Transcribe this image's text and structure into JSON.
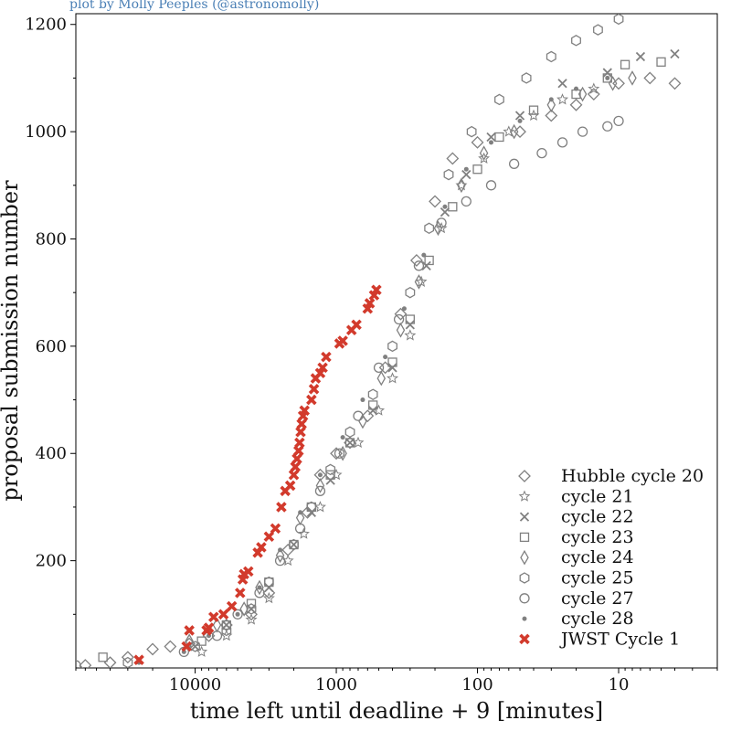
{
  "chart_data": {
    "type": "scatter",
    "credit": "plot by Molly Peeples (@astronomolly)",
    "xlabel": "time left until deadline + 9 [minutes]",
    "ylabel": "proposal submission number",
    "x_scale": "log",
    "x_inverted": true,
    "xlim": [
      70000,
      2
    ],
    "ylim": [
      0,
      1220
    ],
    "xticks": [
      10000,
      1000,
      100,
      10
    ],
    "xtick_labels": [
      "10000",
      "1000",
      "100",
      "10"
    ],
    "yticks": [
      200,
      400,
      600,
      800,
      1000,
      1200
    ],
    "ytick_labels": [
      "200",
      "400",
      "600",
      "800",
      "1000",
      "1200"
    ],
    "legend_position": "lower-right",
    "series": [
      {
        "name": "Hubble cycle 20",
        "marker": "diamond",
        "color": "#808080",
        "x": [
          60000,
          40000,
          30000,
          20000,
          15000,
          11000,
          8000,
          6000,
          4000,
          3000,
          2200,
          1600,
          1300,
          1000,
          800,
          600,
          450,
          350,
          270,
          200,
          150,
          100,
          50,
          30,
          20,
          15,
          10,
          6,
          4
        ],
        "y": [
          5,
          10,
          20,
          35,
          40,
          45,
          60,
          80,
          100,
          140,
          220,
          290,
          360,
          400,
          420,
          470,
          560,
          660,
          760,
          870,
          950,
          980,
          1000,
          1030,
          1050,
          1070,
          1090,
          1100,
          1090
        ]
      },
      {
        "name": "cycle 21",
        "marker": "star",
        "color": "#808080",
        "x": [
          9000,
          6000,
          4000,
          3000,
          2200,
          1700,
          1300,
          1000,
          700,
          500,
          400,
          300,
          250,
          180,
          130,
          90,
          60,
          40,
          25,
          15
        ],
        "y": [
          30,
          60,
          90,
          130,
          200,
          250,
          300,
          360,
          420,
          480,
          540,
          620,
          720,
          820,
          900,
          950,
          1000,
          1030,
          1060,
          1080
        ]
      },
      {
        "name": "cycle 22",
        "marker": "x",
        "color": "#808080",
        "x": [
          10000,
          6000,
          4000,
          3000,
          2000,
          1500,
          1100,
          800,
          550,
          400,
          300,
          230,
          170,
          120,
          80,
          50,
          25,
          12,
          7,
          4
        ],
        "y": [
          40,
          80,
          110,
          150,
          230,
          290,
          350,
          420,
          480,
          560,
          640,
          750,
          850,
          920,
          990,
          1030,
          1090,
          1110,
          1140,
          1145
        ]
      },
      {
        "name": "cycle 23",
        "marker": "square",
        "color": "#808080",
        "x": [
          45000,
          9000,
          6000,
          4000,
          3000,
          2000,
          1500,
          1100,
          800,
          550,
          400,
          300,
          220,
          150,
          100,
          70,
          40,
          20,
          12,
          9,
          5
        ],
        "y": [
          20,
          50,
          80,
          120,
          160,
          230,
          300,
          360,
          420,
          490,
          570,
          650,
          760,
          860,
          930,
          990,
          1040,
          1070,
          1100,
          1125,
          1130
        ]
      },
      {
        "name": "cycle 24",
        "marker": "thin_diamond",
        "color": "#808080",
        "x": [
          11000,
          7000,
          4500,
          3500,
          2500,
          1800,
          1300,
          900,
          650,
          480,
          350,
          260,
          190,
          130,
          90,
          55,
          30,
          18,
          11,
          8
        ],
        "y": [
          50,
          80,
          110,
          150,
          210,
          280,
          340,
          400,
          460,
          540,
          630,
          720,
          820,
          900,
          960,
          1000,
          1050,
          1070,
          1090,
          1100
        ]
      },
      {
        "name": "cycle 25",
        "marker": "hexagon",
        "color": "#808080",
        "x": [
          30000,
          10000,
          6000,
          4000,
          3000,
          2000,
          1500,
          1100,
          800,
          550,
          400,
          300,
          220,
          160,
          110,
          70,
          45,
          30,
          20,
          14,
          10
        ],
        "y": [
          10,
          40,
          70,
          110,
          160,
          230,
          300,
          370,
          440,
          510,
          600,
          700,
          820,
          920,
          1000,
          1060,
          1100,
          1140,
          1170,
          1190,
          1210
        ]
      },
      {
        "name": "cycle 27",
        "marker": "circle",
        "color": "#808080",
        "x": [
          70000,
          12000,
          7000,
          5000,
          3500,
          2500,
          1800,
          1300,
          950,
          700,
          500,
          360,
          260,
          180,
          120,
          80,
          55,
          35,
          25,
          18,
          12,
          10
        ],
        "y": [
          5,
          30,
          60,
          100,
          140,
          200,
          260,
          330,
          400,
          470,
          560,
          650,
          750,
          830,
          870,
          900,
          940,
          960,
          980,
          1000,
          1010,
          1020
        ]
      },
      {
        "name": "cycle 28",
        "marker": "point",
        "color": "#808080",
        "x": [
          25000,
          12000,
          8000,
          5000,
          3500,
          2500,
          1800,
          1300,
          900,
          650,
          450,
          330,
          240,
          170,
          120,
          80,
          50,
          30,
          20,
          12
        ],
        "y": [
          10,
          30,
          60,
          100,
          150,
          220,
          290,
          360,
          430,
          500,
          580,
          670,
          770,
          860,
          930,
          980,
          1020,
          1060,
          1080,
          1100
        ]
      },
      {
        "name": "JWST Cycle 1",
        "marker": "x_filled",
        "color": "#d23a2c",
        "x": [
          25000,
          11500,
          11000,
          8300,
          8000,
          7400,
          6300,
          5500,
          4800,
          4600,
          4500,
          4200,
          3600,
          3400,
          3000,
          2700,
          2450,
          2300,
          2120,
          2000,
          1950,
          1900,
          1850,
          1820,
          1790,
          1760,
          1720,
          1680,
          1500,
          1440,
          1400,
          1300,
          1250,
          1180,
          950,
          900,
          780,
          720,
          600,
          580,
          540,
          520
        ],
        "y": [
          15,
          40,
          70,
          70,
          75,
          95,
          100,
          115,
          140,
          165,
          175,
          180,
          215,
          225,
          245,
          260,
          300,
          330,
          340,
          360,
          375,
          390,
          405,
          420,
          440,
          455,
          470,
          480,
          500,
          520,
          540,
          550,
          560,
          580,
          605,
          610,
          630,
          640,
          670,
          680,
          695,
          705
        ]
      }
    ]
  }
}
